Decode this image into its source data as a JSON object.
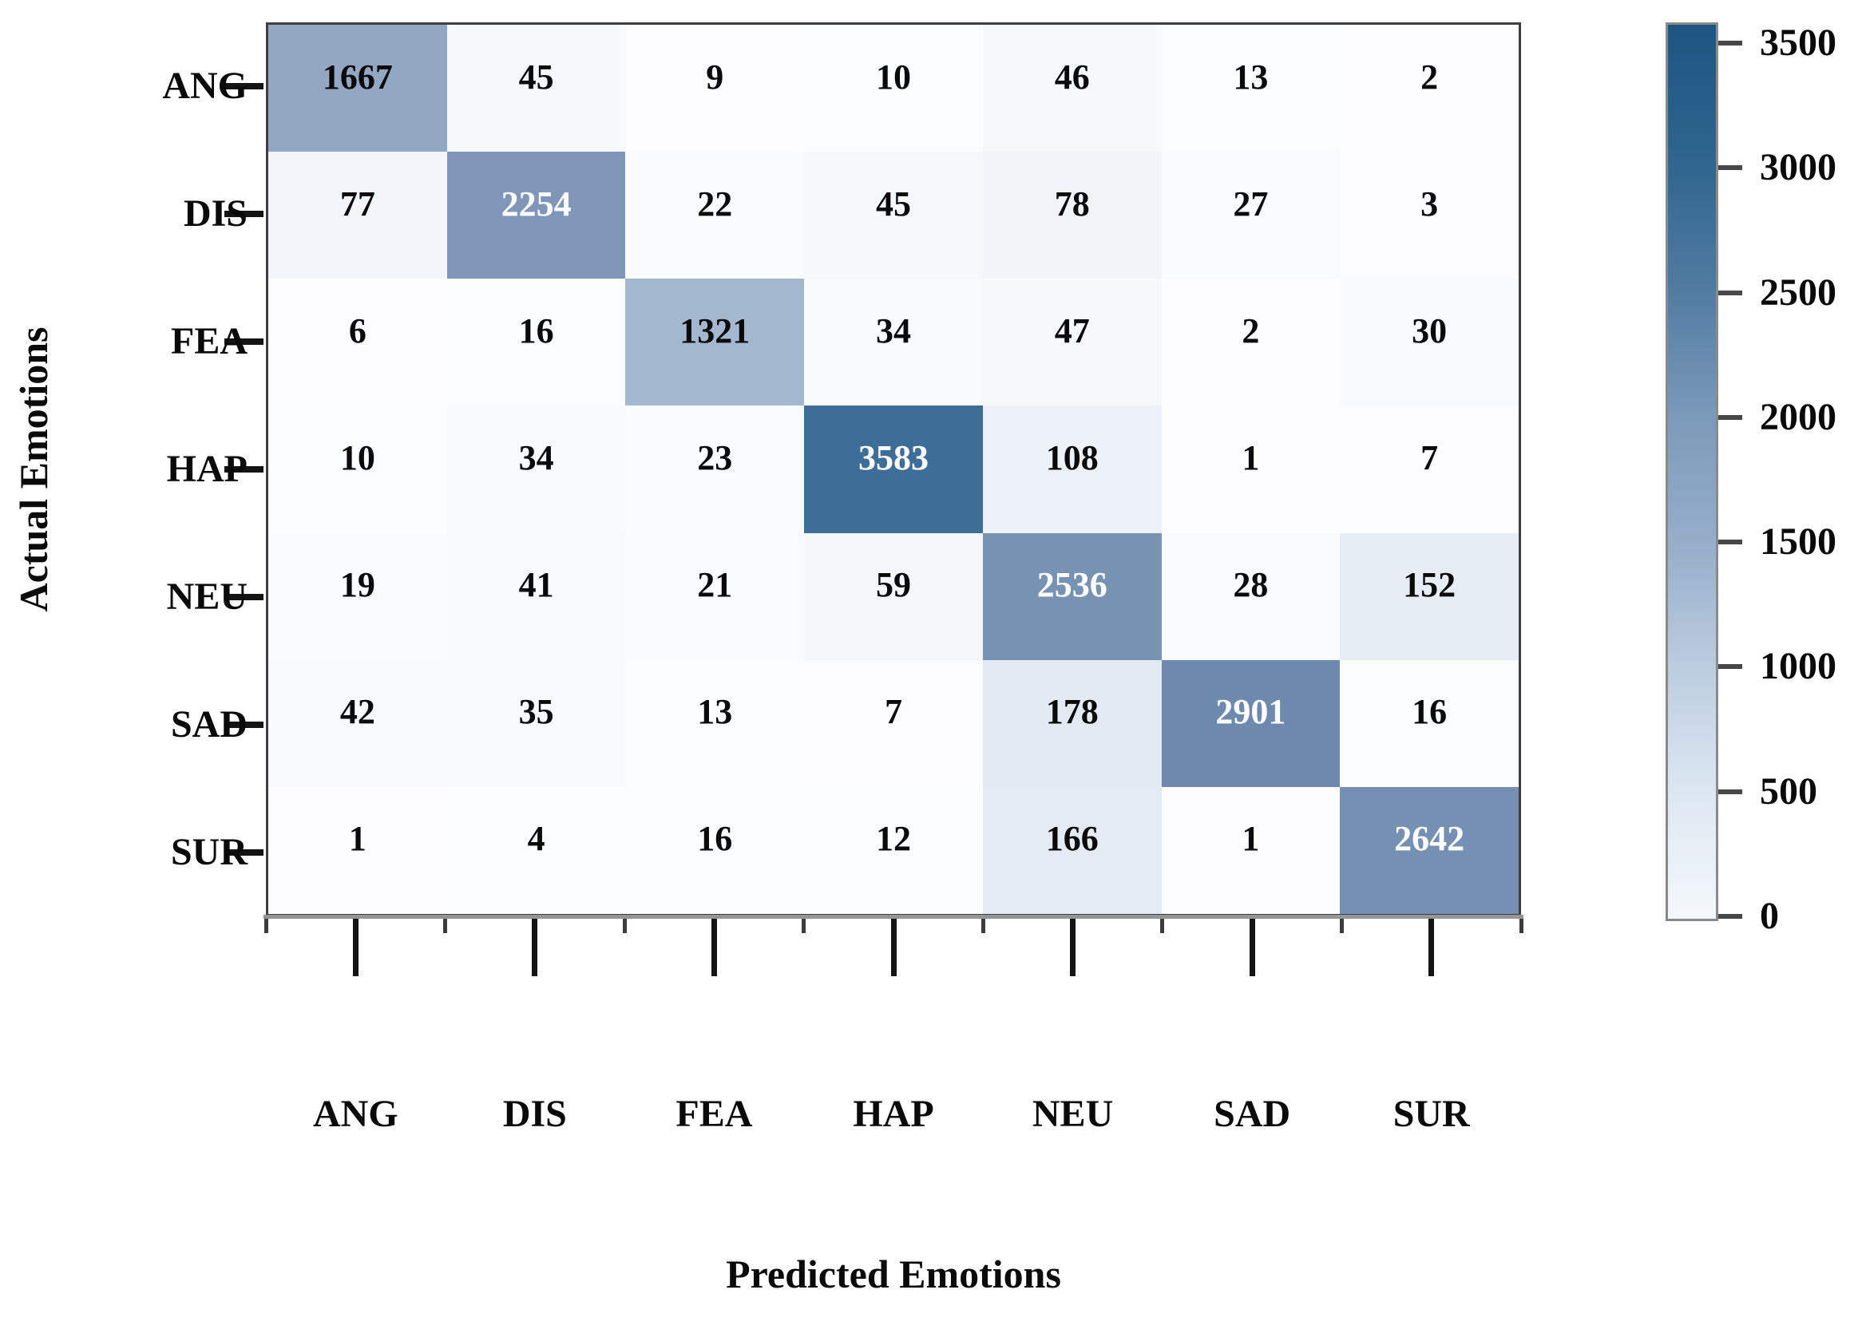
{
  "chart_data": {
    "type": "heatmap",
    "title": "",
    "xlabel": "Predicted Emotions",
    "ylabel": "Actual Emotions",
    "categories": [
      "ANG",
      "DIS",
      "FEA",
      "HAP",
      "NEU",
      "SAD",
      "SUR"
    ],
    "matrix": [
      [
        1667,
        45,
        9,
        10,
        46,
        13,
        2
      ],
      [
        77,
        2254,
        22,
        45,
        78,
        27,
        3
      ],
      [
        6,
        16,
        1321,
        34,
        47,
        2,
        30
      ],
      [
        10,
        34,
        23,
        3583,
        108,
        1,
        7
      ],
      [
        19,
        41,
        21,
        59,
        2536,
        28,
        152
      ],
      [
        42,
        35,
        13,
        7,
        178,
        2901,
        16
      ],
      [
        1,
        4,
        16,
        12,
        166,
        1,
        2642
      ]
    ],
    "vmin": 0,
    "vmax": 3583,
    "colorbar_ticks": [
      3500,
      3000,
      2500,
      2000,
      1500,
      1000,
      500,
      0
    ],
    "grid": false,
    "legend_position": "right-colorbar",
    "cell_text_colors": {
      "dark": "#0a0a0a",
      "light": "#ffffff"
    },
    "cell_text_light_threshold": 2000,
    "colormap_stops": [
      {
        "t": 0.0,
        "rgb": [
          253,
          253,
          255
        ]
      },
      {
        "t": 0.013,
        "rgb": [
          246,
          249,
          252
        ]
      },
      {
        "t": 0.03,
        "rgb": [
          237,
          242,
          248
        ]
      },
      {
        "t": 0.05,
        "rgb": [
          226,
          234,
          243
        ]
      },
      {
        "t": 0.15,
        "rgb": [
          200,
          213,
          229
        ]
      },
      {
        "t": 0.369,
        "rgb": [
          163,
          183,
          207
        ]
      },
      {
        "t": 0.465,
        "rgb": [
          147,
          167,
          195
        ]
      },
      {
        "t": 0.629,
        "rgb": [
          128,
          150,
          184
        ]
      },
      {
        "t": 0.74,
        "rgb": [
          117,
          144,
          179
        ]
      },
      {
        "t": 0.81,
        "rgb": [
          109,
          137,
          174
        ]
      },
      {
        "t": 1.0,
        "rgb": [
          62,
          110,
          152
        ]
      }
    ],
    "colorbar_gradient_stops": [
      {
        "pos": 0,
        "color": "#f4f8fc"
      },
      {
        "pos": 14,
        "color": "#dde7f2"
      },
      {
        "pos": 28,
        "color": "#bccde0"
      },
      {
        "pos": 42,
        "color": "#96aeca"
      },
      {
        "pos": 56,
        "color": "#7c9aba"
      },
      {
        "pos": 70,
        "color": "#527ca2"
      },
      {
        "pos": 84,
        "color": "#30668f"
      },
      {
        "pos": 100,
        "color": "#1c5582"
      }
    ]
  }
}
